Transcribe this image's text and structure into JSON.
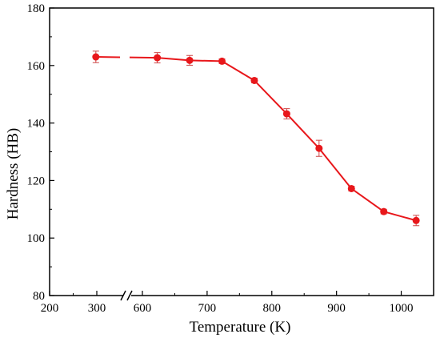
{
  "chart_data": {
    "type": "line",
    "title": "",
    "xlabel": "Temperature (K)",
    "ylabel": "Hardness (HB)",
    "xlim": [
      200,
      1050
    ],
    "ylim": [
      80,
      180
    ],
    "x_axis_break": "between 300 and 600",
    "x_ticks": [
      200,
      300,
      600,
      700,
      800,
      900,
      1000
    ],
    "x_tick_labels": [
      "200",
      "300",
      "600",
      "700",
      "800",
      "900",
      "1000"
    ],
    "y_ticks": [
      80,
      100,
      120,
      140,
      160,
      180
    ],
    "y_tick_labels": [
      "80",
      "100",
      "120",
      "140",
      "160",
      "180"
    ],
    "grid": false,
    "legend": "none",
    "series": [
      {
        "color": "#e8171b",
        "x": [
          298,
          623,
          673,
          723,
          773,
          823,
          873,
          923,
          973,
          1023
        ],
        "y": [
          163,
          162.7,
          161.8,
          161.5,
          154.8,
          143.2,
          131.2,
          117.2,
          109.2,
          106.1
        ],
        "error": [
          2.0,
          1.8,
          1.7,
          0.8,
          0.8,
          1.8,
          2.8,
          0.8,
          0.8,
          1.8
        ]
      }
    ]
  }
}
